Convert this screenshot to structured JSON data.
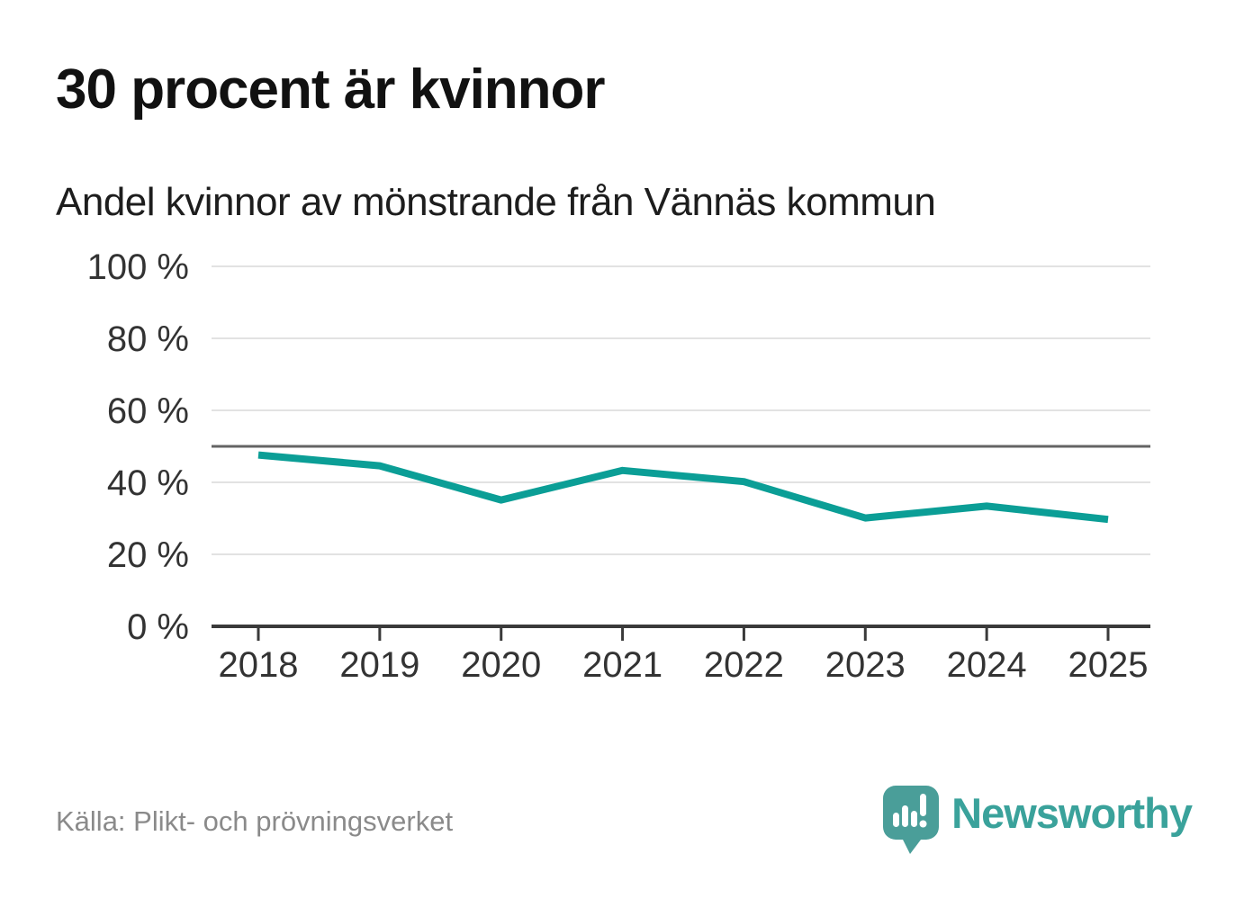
{
  "header": {
    "title": "30 procent är kvinnor",
    "subtitle": "Andel kvinnor av mönstrande från Vännäs kommun"
  },
  "chart_data": {
    "type": "line",
    "title": "30 procent är kvinnor",
    "subtitle": "Andel kvinnor av mönstrande från Vännäs kommun",
    "x": [
      2018,
      2019,
      2020,
      2021,
      2022,
      2023,
      2024,
      2025
    ],
    "x_labels": [
      "2018",
      "2019",
      "2020",
      "2021",
      "2022",
      "2023",
      "2024",
      "2025"
    ],
    "series": [
      {
        "name": "Andel kvinnor",
        "values": [
          47.6,
          44.6,
          35.1,
          43.3,
          40.2,
          30.1,
          33.4,
          29.7
        ]
      }
    ],
    "ylim": [
      0,
      100
    ],
    "yticks": [
      0,
      20,
      40,
      60,
      80,
      100
    ],
    "ytick_labels": [
      "0 %",
      "20 %",
      "40 %",
      "60 %",
      "80 %",
      "100 %"
    ],
    "reference_line": {
      "value": 50
    },
    "grid": "horizontal",
    "legend": "none"
  },
  "footer": {
    "source": "Källa: Plikt- och prövningsverket",
    "logo_text": "Newsworthy"
  },
  "colors": {
    "line": "#0b9e96",
    "grid": "#e2e2e2",
    "axis": "#3a3a3a",
    "reference": "#646464",
    "axis_text": "#333333",
    "title_text": "#111111",
    "source_text": "#8a8a8a",
    "logo_teal": "#3aa29b",
    "logo_bubble_teal": "#4a9e99"
  }
}
